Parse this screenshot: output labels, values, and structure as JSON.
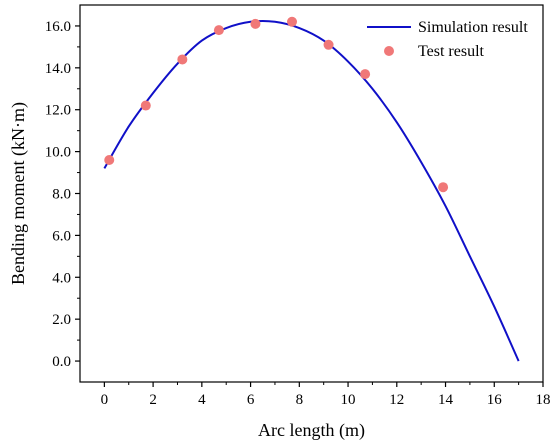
{
  "chart_data": {
    "type": "line",
    "xlabel": "Arc length (m)",
    "ylabel": "Bending moment (kN·m)",
    "xlim": [
      -1,
      18
    ],
    "ylim": [
      -1,
      17
    ],
    "x_ticks": [
      0,
      2,
      4,
      6,
      8,
      10,
      12,
      14,
      16,
      18
    ],
    "x_tick_labels": [
      "0",
      "2",
      "4",
      "6",
      "8",
      "10",
      "12",
      "14",
      "16",
      "18"
    ],
    "y_ticks": [
      0,
      2,
      4,
      6,
      8,
      10,
      12,
      14,
      16
    ],
    "y_tick_labels": [
      "0.0",
      "2.0",
      "4.0",
      "6.0",
      "8.0",
      "10.0",
      "12.0",
      "14.0",
      "16.0"
    ],
    "grid": false,
    "legend_position": "top-right",
    "series": [
      {
        "name": "Simulation result",
        "type": "line",
        "color": "#1010c8",
        "x": [
          0,
          1,
          2,
          3,
          4,
          5,
          6,
          7,
          8,
          9,
          10,
          11,
          12,
          13,
          14,
          15,
          16,
          17
        ],
        "y": [
          9.2,
          11.2,
          12.8,
          14.2,
          15.3,
          15.9,
          16.2,
          16.2,
          15.9,
          15.3,
          14.3,
          13.0,
          11.4,
          9.5,
          7.4,
          5.0,
          2.6,
          0.0
        ]
      },
      {
        "name": "Test result",
        "type": "scatter",
        "color": "#f07878",
        "x": [
          0.2,
          1.7,
          3.2,
          4.7,
          6.2,
          7.7,
          9.2,
          10.7,
          13.9
        ],
        "y": [
          9.6,
          12.2,
          14.4,
          15.8,
          16.1,
          16.2,
          15.1,
          13.7,
          8.3
        ]
      }
    ]
  }
}
